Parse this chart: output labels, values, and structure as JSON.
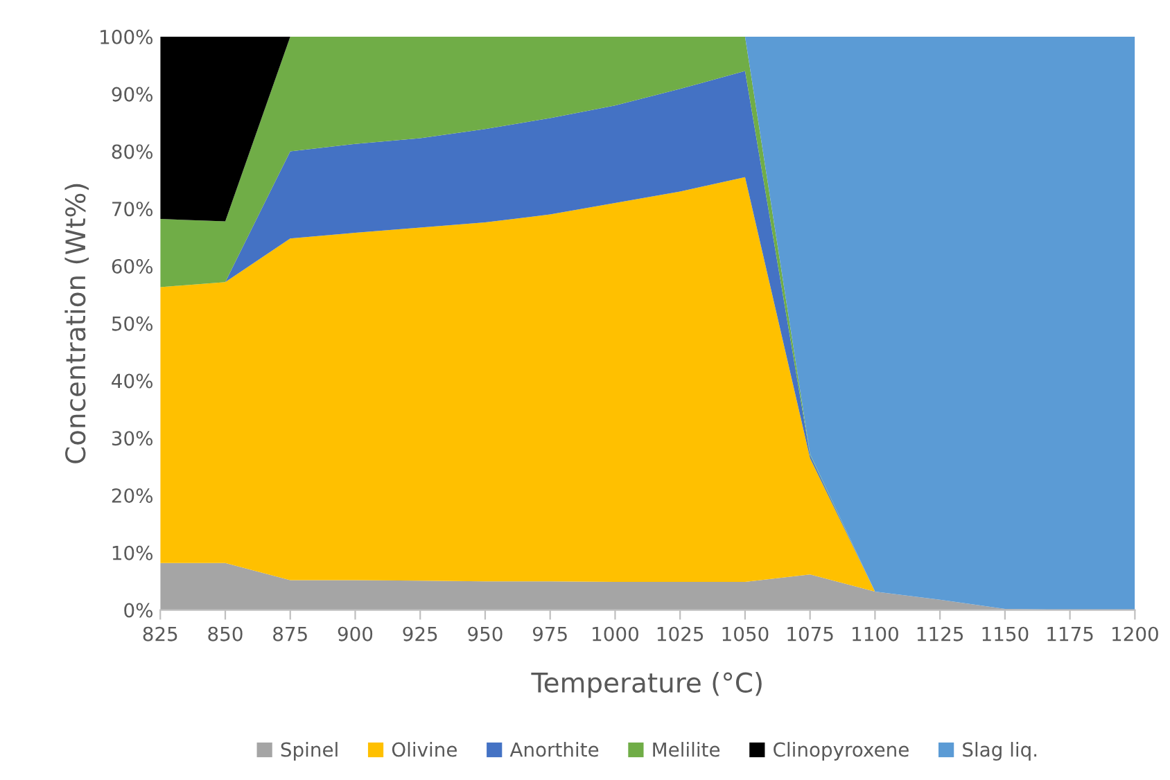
{
  "chart_data": {
    "type": "area",
    "stacked": true,
    "xlabel": "Temperature (°C)",
    "ylabel": "Concentration (Wt%)",
    "x": [
      825,
      850,
      875,
      900,
      925,
      950,
      975,
      1000,
      1025,
      1050,
      1075,
      1100,
      1125,
      1150,
      1175,
      1200
    ],
    "xlim": [
      825,
      1200
    ],
    "xticks": [
      825,
      850,
      875,
      900,
      925,
      950,
      975,
      1000,
      1025,
      1050,
      1075,
      1100,
      1125,
      1150,
      1175,
      1200
    ],
    "ylim": [
      0,
      100
    ],
    "yticks": [
      {
        "value": 0,
        "label": "0%"
      },
      {
        "value": 10,
        "label": "10%"
      },
      {
        "value": 20,
        "label": "20%"
      },
      {
        "value": 30,
        "label": "30%"
      },
      {
        "value": 40,
        "label": "40%"
      },
      {
        "value": 50,
        "label": "50%"
      },
      {
        "value": 60,
        "label": "60%"
      },
      {
        "value": 70,
        "label": "70%"
      },
      {
        "value": 80,
        "label": "80%"
      },
      {
        "value": 90,
        "label": "90%"
      },
      {
        "value": 100,
        "label": "100%"
      }
    ],
    "legend": "bottom",
    "grid": false,
    "series": [
      {
        "name": "Spinel",
        "color": "#a5a5a5",
        "values": [
          8.2,
          8.2,
          5.2,
          5.2,
          5.1,
          5.0,
          5.0,
          4.9,
          4.9,
          4.9,
          6.2,
          3.2,
          1.8,
          0.2,
          0,
          0
        ]
      },
      {
        "name": "Olivine",
        "color": "#ffc000",
        "values": [
          48.1,
          49.0,
          59.6,
          60.6,
          61.6,
          62.6,
          64.0,
          66.1,
          68.1,
          70.6,
          20.3,
          0,
          0,
          0,
          0,
          0
        ]
      },
      {
        "name": "Anorthite",
        "color": "#4472c4",
        "values": [
          0,
          0,
          15.2,
          15.5,
          15.6,
          16.3,
          16.8,
          17.0,
          17.9,
          18.5,
          0.5,
          0,
          0,
          0,
          0,
          0
        ]
      },
      {
        "name": "Melilite",
        "color": "#70ad47",
        "values": [
          11.9,
          10.6,
          20.0,
          18.7,
          17.7,
          16.1,
          14.2,
          12.0,
          9.1,
          6.0,
          0.2,
          0,
          0,
          0,
          0,
          0
        ]
      },
      {
        "name": "Clinopyroxene",
        "color": "#000000",
        "values": [
          31.8,
          32.2,
          0,
          null,
          null,
          null,
          null,
          null,
          null,
          null,
          null,
          null,
          null,
          null,
          null,
          null
        ]
      },
      {
        "name": "Slag liq.",
        "color": "#5b9bd5",
        "values": [
          null,
          null,
          null,
          null,
          null,
          null,
          null,
          null,
          null,
          0,
          72.8,
          96.8,
          98.2,
          99.8,
          100,
          100
        ]
      }
    ]
  }
}
